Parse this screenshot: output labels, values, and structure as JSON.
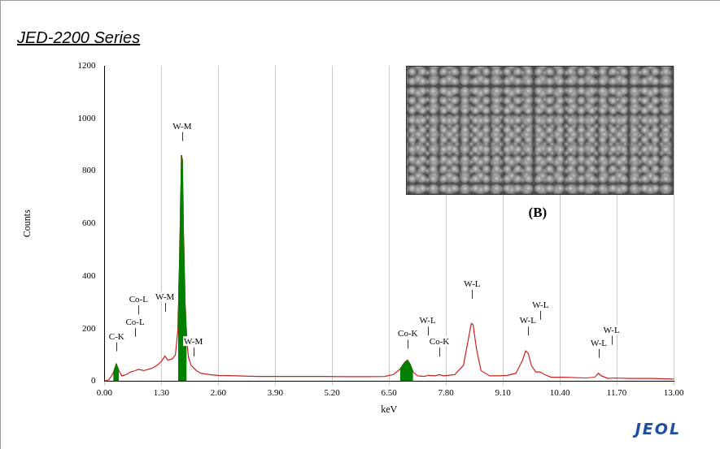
{
  "chart_data": {
    "type": "line",
    "title": "JED-2200 Series",
    "x_label": "keV",
    "y_label": "Counts",
    "logo": "JEOL",
    "inset": {
      "label": "(B)"
    },
    "xlim": [
      0,
      13
    ],
    "xticks": [
      {
        "value": 0,
        "label": "0.00"
      },
      {
        "value": 1.3,
        "label": "1.30"
      },
      {
        "value": 2.6,
        "label": "2.60"
      },
      {
        "value": 3.9,
        "label": "3.90"
      },
      {
        "value": 5.2,
        "label": "5.20"
      },
      {
        "value": 6.5,
        "label": "6.50"
      },
      {
        "value": 7.8,
        "label": "7.80"
      },
      {
        "value": 9.1,
        "label": "9.10"
      },
      {
        "value": 10.4,
        "label": "10.40"
      },
      {
        "value": 11.7,
        "label": "11.70"
      },
      {
        "value": 13,
        "label": "13.00"
      }
    ],
    "ylim": [
      0,
      1200
    ],
    "yticks": [
      0,
      200,
      400,
      600,
      800,
      1000,
      1200
    ],
    "grid": "x",
    "series": [
      {
        "type": "line",
        "color": "#cc2020",
        "x": [
          0,
          0.1,
          0.2,
          0.27,
          0.33,
          0.4,
          0.5,
          0.6,
          0.7,
          0.78,
          0.9,
          1.0,
          1.1,
          1.2,
          1.3,
          1.38,
          1.45,
          1.55,
          1.62,
          1.68,
          1.72,
          1.76,
          1.78,
          1.8,
          1.84,
          1.88,
          1.92,
          1.98,
          2.04,
          2.1,
          2.2,
          2.4,
          2.6,
          3.0,
          3.5,
          4.0,
          4.5,
          5.0,
          5.5,
          6.0,
          6.4,
          6.6,
          6.75,
          6.85,
          6.92,
          6.98,
          7.05,
          7.15,
          7.3,
          7.4,
          7.55,
          7.65,
          7.75,
          8.0,
          8.2,
          8.3,
          8.38,
          8.42,
          8.5,
          8.6,
          8.8,
          9.0,
          9.2,
          9.4,
          9.55,
          9.62,
          9.68,
          9.75,
          9.85,
          9.95,
          10.05,
          10.2,
          10.5,
          11.0,
          11.2,
          11.28,
          11.35,
          11.5,
          11.65,
          12.0,
          12.5,
          13.0
        ],
        "values": [
          0,
          5,
          30,
          65,
          40,
          20,
          25,
          35,
          40,
          45,
          40,
          45,
          50,
          60,
          75,
          95,
          80,
          85,
          100,
          200,
          500,
          860,
          840,
          600,
          300,
          150,
          90,
          60,
          50,
          40,
          30,
          25,
          22,
          20,
          18,
          18,
          18,
          18,
          17,
          17,
          18,
          25,
          45,
          70,
          80,
          65,
          35,
          20,
          18,
          22,
          20,
          25,
          20,
          25,
          60,
          150,
          220,
          215,
          120,
          40,
          20,
          20,
          22,
          30,
          80,
          115,
          105,
          60,
          35,
          35,
          25,
          15,
          15,
          12,
          15,
          30,
          20,
          10,
          12,
          10,
          10,
          8
        ]
      },
      {
        "type": "area",
        "color": "#008000",
        "x": [
          0.2,
          0.27,
          0.33
        ],
        "values": [
          30,
          65,
          40
        ]
      },
      {
        "type": "area",
        "color": "#008000",
        "x": [
          1.68,
          1.72,
          1.76,
          1.78,
          1.8,
          1.84,
          1.88
        ],
        "values": [
          200,
          500,
          860,
          840,
          600,
          300,
          150
        ]
      },
      {
        "type": "area",
        "color": "#008000",
        "x": [
          6.75,
          6.85,
          6.92,
          6.98,
          7.05
        ],
        "values": [
          45,
          70,
          80,
          65,
          35
        ]
      }
    ],
    "annotations": [
      {
        "text": "C-K",
        "x": 0.277,
        "y": 160
      },
      {
        "text": "Co-L",
        "x": 0.7,
        "y": 215
      },
      {
        "text": "Co-L",
        "x": 0.78,
        "y": 300
      },
      {
        "text": "W-M",
        "x": 1.38,
        "y": 310
      },
      {
        "text": "W-M",
        "x": 1.775,
        "y": 960
      },
      {
        "text": "W-M",
        "x": 2.03,
        "y": 140
      },
      {
        "text": "Co-K",
        "x": 6.93,
        "y": 170
      },
      {
        "text": "W-L",
        "x": 7.38,
        "y": 220
      },
      {
        "text": "Co-K",
        "x": 7.65,
        "y": 140
      },
      {
        "text": "W-L",
        "x": 8.4,
        "y": 360
      },
      {
        "text": "W-L",
        "x": 9.67,
        "y": 220
      },
      {
        "text": "W-L",
        "x": 9.96,
        "y": 280
      },
      {
        "text": "W-L",
        "x": 11.29,
        "y": 135
      },
      {
        "text": "W-L",
        "x": 11.58,
        "y": 185
      }
    ]
  }
}
